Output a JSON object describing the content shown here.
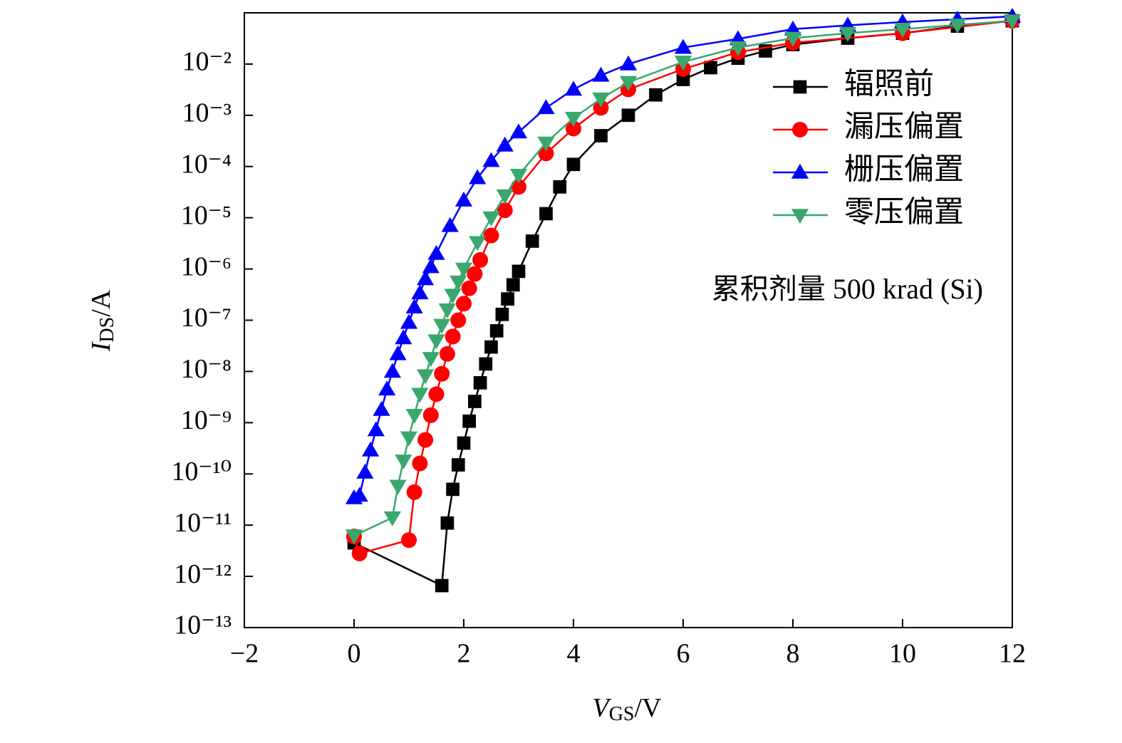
{
  "chart_data": {
    "type": "line",
    "xlabel": {
      "main": "V",
      "sub": "GS",
      "rest": "/V"
    },
    "ylabel": {
      "main": "I",
      "sub": "DS",
      "rest": "/A"
    },
    "annotation": "累积剂量 500 krad (Si)",
    "xlim": [
      -2,
      12
    ],
    "xticks": [
      {
        "value": -2,
        "label": "−2"
      },
      0,
      2,
      4,
      6,
      8,
      10,
      12
    ],
    "ylim": [
      1e-13,
      0.1
    ],
    "log_y": true,
    "yticks": [
      {
        "value": 1e-13,
        "label": "10⁻¹³"
      },
      {
        "value": 1e-12,
        "label": "10⁻¹²"
      },
      {
        "value": 1e-11,
        "label": "10⁻¹¹"
      },
      {
        "value": 1e-10,
        "label": "10⁻¹⁰"
      },
      {
        "value": 1e-09,
        "label": "10⁻⁹"
      },
      {
        "value": 1e-08,
        "label": "10⁻⁸"
      },
      {
        "value": 1e-07,
        "label": "10⁻⁷"
      },
      {
        "value": 1e-06,
        "label": "10⁻⁶"
      },
      {
        "value": 1e-05,
        "label": "10⁻⁵"
      },
      {
        "value": 0.0001,
        "label": "10⁻⁴"
      },
      {
        "value": 0.001,
        "label": "10⁻³"
      },
      {
        "value": 0.01,
        "label": "10⁻²"
      }
    ],
    "legend": "upper right",
    "series": [
      {
        "name": "辐照前",
        "color": "#000000",
        "marker": "square",
        "x": [
          0,
          1.6,
          1.7,
          1.8,
          1.9,
          2.0,
          2.1,
          2.2,
          2.3,
          2.4,
          2.5,
          2.6,
          2.7,
          2.8,
          2.9,
          3.0,
          3.25,
          3.5,
          3.75,
          4.0,
          4.5,
          5.0,
          5.5,
          6.0,
          6.5,
          7.0,
          7.5,
          8.0,
          9.0,
          10.0,
          11.0,
          12.0
        ],
        "values": [
          4.5e-12,
          6.6e-13,
          1.1e-11,
          5e-11,
          1.5e-10,
          4e-10,
          1.07e-09,
          2.6e-09,
          6e-09,
          1.4e-08,
          3e-08,
          6.2e-08,
          1.3e-07,
          2.6e-07,
          4.9e-07,
          9e-07,
          3.5e-06,
          1.2e-05,
          4e-05,
          0.00011,
          0.0004,
          0.001,
          0.0025,
          0.005,
          0.0085,
          0.013,
          0.018,
          0.024,
          0.032,
          0.04,
          0.055,
          0.07
        ]
      },
      {
        "name": "漏压偏置",
        "color": "#ff0000",
        "marker": "circle",
        "x": [
          0,
          0.1,
          1.0,
          1.1,
          1.2,
          1.3,
          1.4,
          1.5,
          1.6,
          1.7,
          1.8,
          1.9,
          2.0,
          2.1,
          2.2,
          2.3,
          2.5,
          2.75,
          3.0,
          3.5,
          4.0,
          4.5,
          5.0,
          6.0,
          7.0,
          8.0,
          10.0,
          12.0
        ],
        "values": [
          6e-12,
          2.8e-12,
          5.1e-12,
          4.4e-11,
          1.6e-10,
          4.6e-10,
          1.4e-09,
          3.6e-09,
          9e-09,
          2.2e-08,
          4.8e-08,
          1e-07,
          2.1e-07,
          4.2e-07,
          8e-07,
          1.5e-06,
          4.5e-06,
          1.4e-05,
          4e-05,
          0.00018,
          0.00055,
          0.0014,
          0.0032,
          0.008,
          0.017,
          0.026,
          0.04,
          0.07
        ]
      },
      {
        "name": "栅压偏置",
        "color": "#0000ff",
        "marker": "triangle-up",
        "x": [
          0,
          0.1,
          0.2,
          0.3,
          0.4,
          0.5,
          0.6,
          0.7,
          0.8,
          0.9,
          1.0,
          1.1,
          1.2,
          1.3,
          1.4,
          1.5,
          1.75,
          2.0,
          2.25,
          2.5,
          2.75,
          3.0,
          3.5,
          4.0,
          4.5,
          5.0,
          6.0,
          7.0,
          8.0,
          9.0,
          10.0,
          11.0,
          12.0
        ],
        "values": [
          3.4e-11,
          3.8e-11,
          1.07e-10,
          2.9e-10,
          7.2e-10,
          1.8e-09,
          4.5e-09,
          1e-08,
          2.2e-08,
          4.5e-08,
          9e-08,
          1.8e-07,
          3.4e-07,
          6.4e-07,
          1.1e-06,
          2e-06,
          7e-06,
          2.2e-05,
          6e-05,
          0.00013,
          0.00026,
          0.00047,
          0.0014,
          0.0032,
          0.006,
          0.01,
          0.021,
          0.031,
          0.048,
          0.057,
          0.066,
          0.075,
          0.085
        ]
      },
      {
        "name": "零压偏置",
        "color": "#3aa76d",
        "marker": "triangle-down",
        "x": [
          0,
          0.7,
          0.8,
          0.9,
          1.0,
          1.1,
          1.2,
          1.3,
          1.4,
          1.5,
          1.6,
          1.7,
          1.8,
          1.9,
          2.0,
          2.25,
          2.5,
          2.75,
          3.0,
          3.5,
          4.0,
          4.5,
          5.0,
          6.0,
          7.0,
          8.0,
          9.0,
          10.0,
          11.0,
          12.0
        ],
        "values": [
          6.2e-12,
          1.4e-11,
          5.8e-11,
          1.8e-10,
          5.1e-10,
          1.4e-09,
          3.6e-09,
          8.3e-09,
          1.8e-08,
          4e-08,
          8e-08,
          1.6e-07,
          3.1e-07,
          5.6e-07,
          1e-06,
          3.3e-06,
          1e-05,
          2.7e-05,
          6.8e-05,
          0.00029,
          0.00088,
          0.0021,
          0.0044,
          0.011,
          0.021,
          0.032,
          0.04,
          0.048,
          0.058,
          0.07
        ]
      }
    ]
  }
}
